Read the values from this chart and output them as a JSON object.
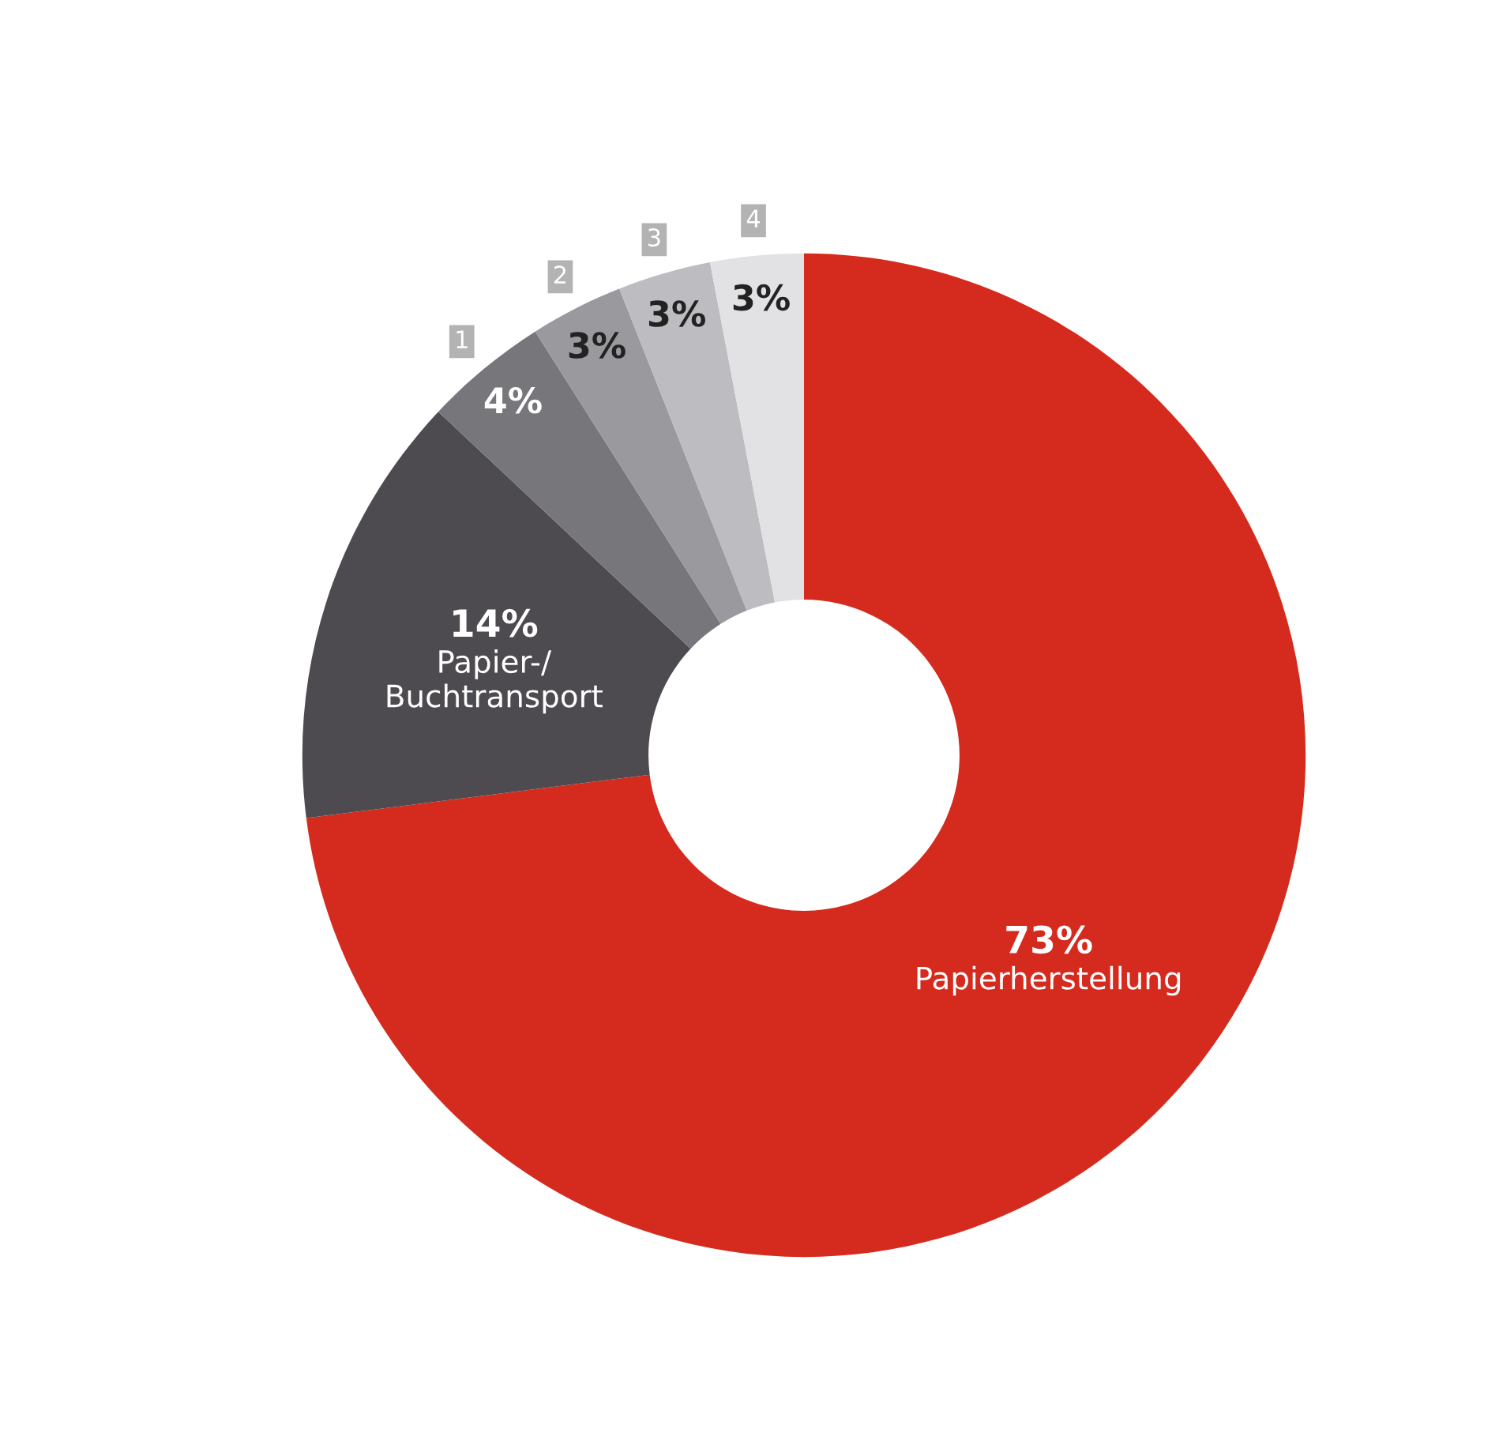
{
  "chart_data": {
    "type": "donut",
    "categories": [
      "Papierherstellung",
      "Papier-/\nBuchtransport",
      "1",
      "2",
      "3",
      "4"
    ],
    "values": [
      73,
      14,
      4,
      3,
      3,
      3
    ],
    "value_labels": [
      "73%",
      "14%",
      "4%",
      "3%",
      "3%",
      "3%"
    ],
    "colors": [
      "#d52b1e",
      "#4d4b50",
      "#77767b",
      "#9a999e",
      "#bdbcc0",
      "#e2e2e4"
    ],
    "legend": false
  }
}
